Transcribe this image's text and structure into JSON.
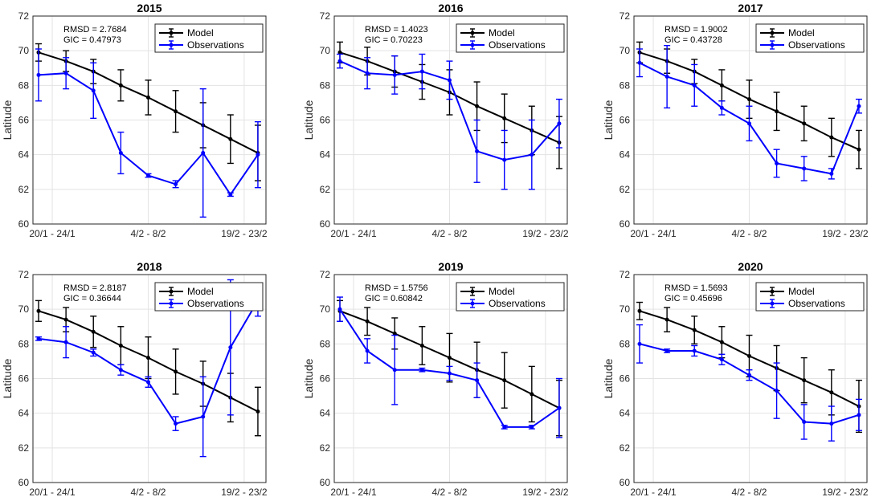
{
  "chart_data": [
    {
      "type": "line",
      "title": "2015",
      "ylabel": "Latitude",
      "ylim": [
        60,
        72
      ],
      "yticks": [
        60,
        62,
        64,
        66,
        68,
        70,
        72
      ],
      "xticklabels": [
        "20/1 - 24/1",
        "4/2 - 8/2",
        "19/2 - 23/2"
      ],
      "stats": [
        "RMSD = 2.7684",
        "GIC = 0.47973"
      ],
      "series": [
        {
          "name": "Model",
          "color": "#000000",
          "values": [
            69.9,
            69.4,
            68.8,
            68.0,
            67.3,
            66.5,
            65.7,
            64.9,
            64.1
          ],
          "errors": [
            0.5,
            0.6,
            0.7,
            0.9,
            1.0,
            1.2,
            1.3,
            1.4,
            1.6
          ]
        },
        {
          "name": "Observations",
          "color": "#0000ff",
          "values": [
            68.6,
            68.7,
            67.7,
            64.1,
            62.8,
            62.3,
            64.1,
            61.7,
            64.0
          ],
          "errors": [
            1.5,
            0.9,
            1.6,
            1.2,
            0.1,
            0.2,
            3.7,
            0.1,
            1.9
          ]
        }
      ]
    },
    {
      "type": "line",
      "title": "2016",
      "ylabel": "Latitude",
      "ylim": [
        60,
        72
      ],
      "yticks": [
        60,
        62,
        64,
        66,
        68,
        70,
        72
      ],
      "xticklabels": [
        "20/1 - 24/1",
        "4/2 - 8/2",
        "19/2 - 23/2"
      ],
      "stats": [
        "RMSD = 1.4023",
        "GIC = 0.70223"
      ],
      "series": [
        {
          "name": "Model",
          "color": "#000000",
          "values": [
            69.9,
            69.4,
            68.8,
            68.2,
            67.6,
            66.8,
            66.1,
            65.4,
            64.7
          ],
          "errors": [
            0.6,
            0.8,
            0.9,
            1.0,
            1.3,
            1.4,
            1.4,
            1.4,
            1.5
          ]
        },
        {
          "name": "Observations",
          "color": "#0000ff",
          "values": [
            69.4,
            68.7,
            68.6,
            68.8,
            68.3,
            64.2,
            63.7,
            64.0,
            65.8
          ],
          "errors": [
            0.4,
            0.9,
            1.1,
            1.0,
            1.1,
            1.8,
            1.7,
            2.0,
            1.4
          ]
        }
      ]
    },
    {
      "type": "line",
      "title": "2017",
      "ylabel": "Latitude",
      "ylim": [
        60,
        72
      ],
      "yticks": [
        60,
        62,
        64,
        66,
        68,
        70,
        72
      ],
      "xticklabels": [
        "20/1 - 24/1",
        "4/2 - 8/2",
        "19/2 - 23/2"
      ],
      "stats": [
        "RMSD = 1.9002",
        "GIC = 0.43728"
      ],
      "series": [
        {
          "name": "Model",
          "color": "#000000",
          "values": [
            69.9,
            69.4,
            68.8,
            68.0,
            67.2,
            66.5,
            65.8,
            65.0,
            64.3
          ],
          "errors": [
            0.6,
            0.7,
            0.7,
            0.9,
            1.1,
            1.1,
            1.0,
            1.1,
            1.1
          ]
        },
        {
          "name": "Observations",
          "color": "#0000ff",
          "values": [
            69.3,
            68.5,
            68.0,
            66.7,
            65.8,
            63.5,
            63.2,
            62.9,
            66.8
          ],
          "errors": [
            0.8,
            1.8,
            1.2,
            0.4,
            1.0,
            0.8,
            0.7,
            0.3,
            0.4
          ]
        }
      ]
    },
    {
      "type": "line",
      "title": "2018",
      "ylabel": "Latitude",
      "ylim": [
        60,
        72
      ],
      "yticks": [
        60,
        62,
        64,
        66,
        68,
        70,
        72
      ],
      "xticklabels": [
        "20/1 - 24/1",
        "4/2 - 8/2",
        "19/2 - 23/2"
      ],
      "stats": [
        "RMSD = 2.8187",
        "GIC = 0.36644"
      ],
      "series": [
        {
          "name": "Model",
          "color": "#000000",
          "values": [
            69.9,
            69.4,
            68.7,
            67.9,
            67.2,
            66.4,
            65.7,
            64.9,
            64.1
          ],
          "errors": [
            0.6,
            0.7,
            0.9,
            1.1,
            1.2,
            1.3,
            1.3,
            1.4,
            1.4
          ]
        },
        {
          "name": "Observations",
          "color": "#0000ff",
          "values": [
            68.3,
            68.1,
            67.5,
            66.5,
            65.8,
            63.4,
            63.8,
            67.8,
            70.5
          ],
          "errors": [
            0.1,
            0.9,
            0.2,
            0.3,
            0.3,
            0.4,
            2.3,
            3.9,
            0.9
          ]
        }
      ]
    },
    {
      "type": "line",
      "title": "2019",
      "ylabel": "Latitude",
      "ylim": [
        60,
        72
      ],
      "yticks": [
        60,
        62,
        64,
        66,
        68,
        70,
        72
      ],
      "xticklabels": [
        "20/1 - 24/1",
        "4/2 - 8/2",
        "19/2 - 23/2"
      ],
      "stats": [
        "RMSD = 1.5756",
        "GIC = 0.60842"
      ],
      "series": [
        {
          "name": "Model",
          "color": "#000000",
          "values": [
            69.9,
            69.3,
            68.6,
            67.9,
            67.2,
            66.5,
            65.9,
            65.1,
            64.3
          ],
          "errors": [
            0.6,
            0.8,
            0.9,
            1.1,
            1.4,
            1.6,
            1.6,
            1.6,
            1.6
          ]
        },
        {
          "name": "Observations",
          "color": "#0000ff",
          "values": [
            70.0,
            67.6,
            66.5,
            66.5,
            66.3,
            65.9,
            63.2,
            63.2,
            64.3
          ],
          "errors": [
            0.7,
            0.7,
            2.0,
            0.1,
            0.4,
            1.0,
            0.1,
            0.1,
            1.7
          ]
        }
      ]
    },
    {
      "type": "line",
      "title": "2020",
      "ylabel": "Latitude",
      "ylim": [
        60,
        72
      ],
      "yticks": [
        60,
        62,
        64,
        66,
        68,
        70,
        72
      ],
      "xticklabels": [
        "20/1 - 24/1",
        "4/2 - 8/2",
        "19/2 - 23/2"
      ],
      "stats": [
        "RMSD = 1.5693",
        "GIC = 0.45696"
      ],
      "series": [
        {
          "name": "Model",
          "color": "#000000",
          "values": [
            69.9,
            69.4,
            68.8,
            68.1,
            67.3,
            66.6,
            65.9,
            65.2,
            64.4
          ],
          "errors": [
            0.5,
            0.7,
            0.8,
            0.9,
            1.2,
            1.3,
            1.3,
            1.3,
            1.5
          ]
        },
        {
          "name": "Observations",
          "color": "#0000ff",
          "values": [
            68.0,
            67.6,
            67.6,
            67.1,
            66.2,
            65.3,
            63.5,
            63.4,
            63.9
          ],
          "errors": [
            1.1,
            0.1,
            0.3,
            0.3,
            0.3,
            1.6,
            1.0,
            1.0,
            0.9
          ]
        }
      ]
    }
  ]
}
